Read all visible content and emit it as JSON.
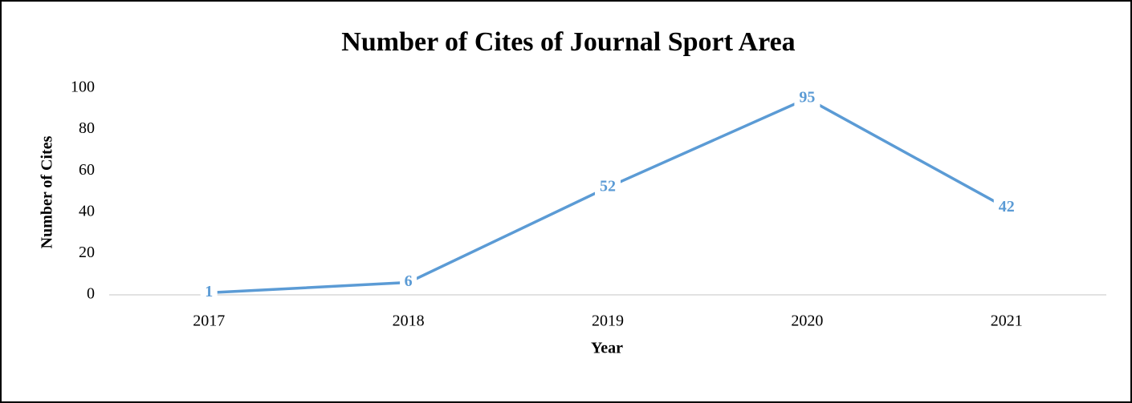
{
  "chart_data": {
    "type": "line",
    "title": "Number of Cites of Journal Sport Area",
    "x_label": "Year",
    "y_label": "Number of Cites",
    "categories": [
      "2017",
      "2018",
      "2019",
      "2020",
      "2021"
    ],
    "series": [
      {
        "name": "Number of Cites",
        "color": "#5b9bd5",
        "values": [
          1,
          6,
          52,
          95,
          42
        ]
      }
    ],
    "ylim": [
      0,
      100
    ],
    "yticks": [
      0,
      20,
      40,
      60,
      80,
      100
    ],
    "grid": false,
    "data_labels": true
  }
}
